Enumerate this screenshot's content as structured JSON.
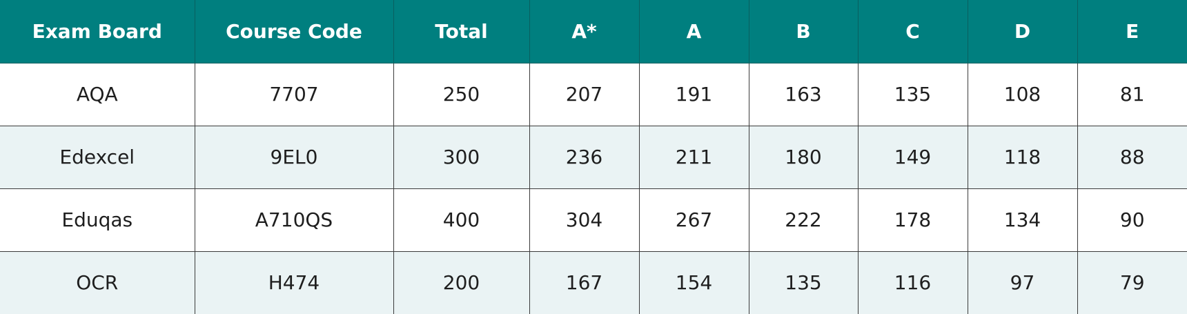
{
  "table": {
    "header": [
      "Exam Board",
      "Course Code",
      "Total",
      "A*",
      "A",
      "B",
      "C",
      "D",
      "E"
    ],
    "rows": [
      [
        "AQA",
        "7707",
        250,
        207,
        191,
        163,
        135,
        108,
        81
      ],
      [
        "Edexcel",
        "9EL0",
        300,
        236,
        211,
        180,
        149,
        118,
        88
      ],
      [
        "Eduqas",
        "A710QS",
        400,
        304,
        267,
        222,
        178,
        134,
        90
      ],
      [
        "OCR",
        "H474",
        200,
        167,
        154,
        135,
        116,
        97,
        79
      ]
    ]
  }
}
